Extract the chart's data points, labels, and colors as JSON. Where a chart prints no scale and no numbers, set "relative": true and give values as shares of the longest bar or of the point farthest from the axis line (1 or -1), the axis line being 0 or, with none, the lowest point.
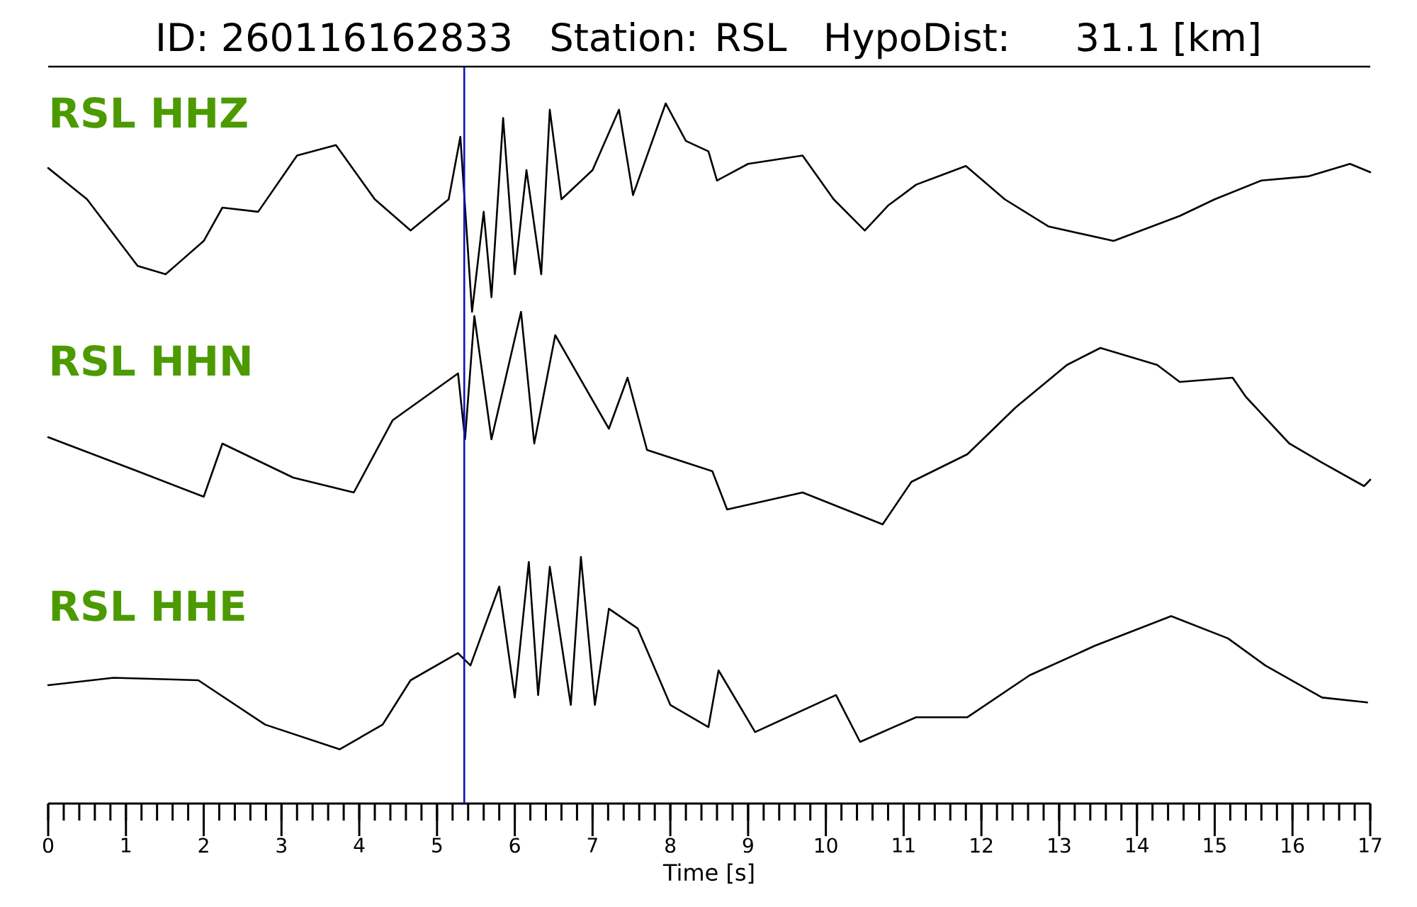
{
  "chart_data": [
    {
      "type": "line",
      "relative": true,
      "title": "ID: 260116162833   Station: RSL   HypoDist:    31.1 [km]",
      "xlim": [
        0,
        17
      ],
      "tick_labels": false,
      "x": [
        0,
        0.5,
        1.15,
        1.51,
        2.0,
        2.24,
        2.7,
        3.2,
        3.7,
        4.2,
        4.66,
        5.15,
        5.3,
        5.45,
        5.6,
        5.7,
        5.85,
        6.0,
        6.15,
        6.34,
        6.45,
        6.6,
        7.0,
        7.34,
        7.52,
        7.94,
        8.2,
        8.49,
        8.6,
        9.0,
        9.7,
        10.1,
        10.5,
        10.8,
        11.16,
        11.8,
        12.3,
        12.86,
        13.7,
        14.55,
        15.0,
        15.6,
        16.2,
        16.74,
        17
      ],
      "series": [
        {
          "name": "RSL HHZ",
          "color": "#000000",
          "values": [
            0.69,
            0.54,
            0.22,
            0.18,
            0.34,
            0.5,
            0.48,
            0.75,
            0.8,
            0.54,
            0.39,
            0.54,
            0.84,
            0,
            0.48,
            0.07,
            0.93,
            0.18,
            0.68,
            0.18,
            0.97,
            0.54,
            0.68,
            0.97,
            0.56,
            1,
            0.82,
            0.77,
            0.63,
            0.71,
            0.75,
            0.54,
            0.39,
            0.51,
            0.61,
            0.7,
            0.54,
            0.41,
            0.34,
            0.46,
            0.54,
            0.63,
            0.65,
            0.71,
            0.67
          ]
        }
      ],
      "ref_lines": [
        {
          "axis": "x",
          "value": 5.35,
          "color": "#1010c0"
        }
      ]
    },
    {
      "type": "line",
      "relative": true,
      "xlim": [
        0,
        17
      ],
      "tick_labels": false,
      "x": [
        0,
        1.15,
        2.0,
        2.24,
        3.15,
        3.93,
        4.43,
        5.27,
        5.36,
        5.48,
        5.7,
        6.08,
        6.25,
        6.52,
        7.21,
        7.45,
        7.7,
        8.54,
        8.73,
        9.7,
        10.73,
        11.1,
        11.82,
        12.44,
        13.1,
        13.53,
        14.26,
        14.55,
        15.23,
        15.4,
        15.96,
        16.38,
        16.92,
        17
      ],
      "series": [
        {
          "name": "RSL HHN",
          "color": "#000000",
          "values": [
            0.41,
            0.25,
            0.13,
            0.38,
            0.22,
            0.15,
            0.49,
            0.71,
            0.4,
            0.98,
            0.4,
            1,
            0.38,
            0.89,
            0.45,
            0.69,
            0.35,
            0.25,
            0.07,
            0.15,
            0,
            0.2,
            0.33,
            0.55,
            0.75,
            0.83,
            0.75,
            0.67,
            0.69,
            0.6,
            0.38,
            0.29,
            0.18,
            0.21
          ]
        }
      ],
      "ref_lines": [
        {
          "axis": "x",
          "value": 5.35,
          "color": "#1010c0"
        }
      ]
    },
    {
      "type": "line",
      "relative": true,
      "xlabel": "Time [s]",
      "xlim": [
        0,
        17
      ],
      "tick_labels": "x",
      "xticks": [
        0,
        1,
        2,
        3,
        4,
        5,
        6,
        7,
        8,
        9,
        10,
        11,
        12,
        13,
        14,
        15,
        16,
        17,
        {
          "value": 0.2,
          "label": null
        },
        {
          "value": 0.4,
          "label": null
        },
        {
          "value": 0.6,
          "label": null
        },
        {
          "value": 0.8,
          "label": null
        },
        {
          "value": 1.2,
          "label": null
        },
        {
          "value": 1.4,
          "label": null
        },
        {
          "value": 1.6,
          "label": null
        },
        {
          "value": 1.8,
          "label": null
        },
        {
          "value": 2.2,
          "label": null
        },
        {
          "value": 2.4,
          "label": null
        },
        {
          "value": 2.6,
          "label": null
        },
        {
          "value": 2.8,
          "label": null
        },
        {
          "value": 3.2,
          "label": null
        },
        {
          "value": 3.4,
          "label": null
        },
        {
          "value": 3.6,
          "label": null
        },
        {
          "value": 3.8,
          "label": null
        },
        {
          "value": 4.2,
          "label": null
        },
        {
          "value": 4.4,
          "label": null
        },
        {
          "value": 4.6,
          "label": null
        },
        {
          "value": 4.8,
          "label": null
        },
        {
          "value": 5.2,
          "label": null
        },
        {
          "value": 5.4,
          "label": null
        },
        {
          "value": 5.6,
          "label": null
        },
        {
          "value": 5.8,
          "label": null
        },
        {
          "value": 6.2,
          "label": null
        },
        {
          "value": 6.4,
          "label": null
        },
        {
          "value": 6.6,
          "label": null
        },
        {
          "value": 6.8,
          "label": null
        },
        {
          "value": 7.2,
          "label": null
        },
        {
          "value": 7.4,
          "label": null
        },
        {
          "value": 7.6,
          "label": null
        },
        {
          "value": 7.8,
          "label": null
        },
        {
          "value": 8.2,
          "label": null
        },
        {
          "value": 8.4,
          "label": null
        },
        {
          "value": 8.6,
          "label": null
        },
        {
          "value": 8.8,
          "label": null
        },
        {
          "value": 9.2,
          "label": null
        },
        {
          "value": 9.4,
          "label": null
        },
        {
          "value": 9.6,
          "label": null
        },
        {
          "value": 9.8,
          "label": null
        },
        {
          "value": 10.2,
          "label": null
        },
        {
          "value": 10.4,
          "label": null
        },
        {
          "value": 10.6,
          "label": null
        },
        {
          "value": 10.8,
          "label": null
        },
        {
          "value": 11.2,
          "label": null
        },
        {
          "value": 11.4,
          "label": null
        },
        {
          "value": 11.6,
          "label": null
        },
        {
          "value": 11.8,
          "label": null
        },
        {
          "value": 12.2,
          "label": null
        },
        {
          "value": 12.4,
          "label": null
        },
        {
          "value": 12.6,
          "label": null
        },
        {
          "value": 12.8,
          "label": null
        },
        {
          "value": 13.2,
          "label": null
        },
        {
          "value": 13.4,
          "label": null
        },
        {
          "value": 13.6,
          "label": null
        },
        {
          "value": 13.8,
          "label": null
        },
        {
          "value": 14.2,
          "label": null
        },
        {
          "value": 14.4,
          "label": null
        },
        {
          "value": 14.6,
          "label": null
        },
        {
          "value": 14.8,
          "label": null
        },
        {
          "value": 15.2,
          "label": null
        },
        {
          "value": 15.4,
          "label": null
        },
        {
          "value": 15.6,
          "label": null
        },
        {
          "value": 15.8,
          "label": null
        },
        {
          "value": 16.2,
          "label": null
        },
        {
          "value": 16.4,
          "label": null
        },
        {
          "value": 16.6,
          "label": null
        },
        {
          "value": 16.8,
          "label": null
        }
      ],
      "x": [
        0,
        0.84,
        1.93,
        2.79,
        3.75,
        4.3,
        4.66,
        5.27,
        5.43,
        5.8,
        6.0,
        6.18,
        6.3,
        6.45,
        6.72,
        6.85,
        7.03,
        7.21,
        7.58,
        8.0,
        8.49,
        8.62,
        9.09,
        10.13,
        10.44,
        11.16,
        11.82,
        12.62,
        13.46,
        14.44,
        15.17,
        15.65,
        16.38,
        16.96
      ],
      "series": [
        {
          "name": "RSL HHE",
          "color": "#000000",
          "values": [
            0.48,
            0.51,
            0.5,
            0.32,
            0.22,
            0.32,
            0.5,
            0.61,
            0.56,
            0.88,
            0.43,
            0.98,
            0.44,
            0.96,
            0.4,
            1,
            0.4,
            0.79,
            0.71,
            0.4,
            0.31,
            0.54,
            0.29,
            0.44,
            0.25,
            0.35,
            0.35,
            0.52,
            0.64,
            0.76,
            0.67,
            0.56,
            0.43,
            0.41
          ]
        }
      ],
      "ref_lines": [
        {
          "axis": "x",
          "value": 5.35,
          "color": "#1010c0"
        }
      ]
    }
  ]
}
